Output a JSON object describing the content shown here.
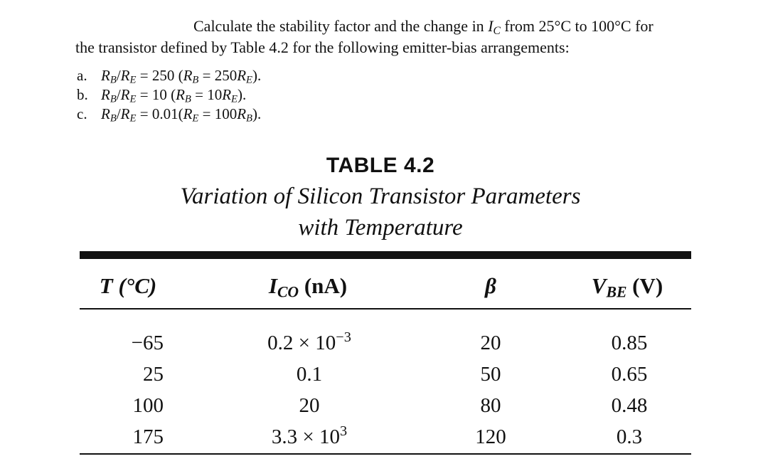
{
  "problem": {
    "line1": [
      "Calculate the stability factor and the change in ",
      "I",
      "C",
      " from 25°C to 100°C for"
    ],
    "line2": "the transistor defined by Table 4.2 for the following emitter-bias arrangements:",
    "items": [
      {
        "label": "a.",
        "ratio": "250",
        "relation": "(R_B = 250R_E)."
      },
      {
        "label": "b.",
        "ratio": "10",
        "relation": "(R_B = 10R_E)."
      },
      {
        "label": "c.",
        "ratio": "0.01",
        "relation": "(R_E = 100R_B)."
      }
    ]
  },
  "table": {
    "title": "TABLE 4.2",
    "caption_line1": "Variation of Silicon Transistor Parameters",
    "caption_line2": "with Temperature",
    "headers": {
      "t": "T (°C)",
      "ico_sym": "I",
      "ico_sub": "CO",
      "ico_unit": " (nA)",
      "beta": "β",
      "vbe_sym": "V",
      "vbe_sub": "BE",
      "vbe_unit": " (V)"
    },
    "rows": [
      {
        "t": "−65",
        "ico_mantissa": "0.2 × 10",
        "ico_exp": "−3",
        "beta": "20",
        "vbe": "0.85"
      },
      {
        "t": "25",
        "ico_mantissa": "0.1",
        "ico_exp": "",
        "beta": "50",
        "vbe": "0.65"
      },
      {
        "t": "100",
        "ico_mantissa": "20",
        "ico_exp": "",
        "beta": "80",
        "vbe": "0.48"
      },
      {
        "t": "175",
        "ico_mantissa": "3.3 × 10",
        "ico_exp": "3",
        "beta": "120",
        "vbe": "0.3"
      }
    ]
  }
}
